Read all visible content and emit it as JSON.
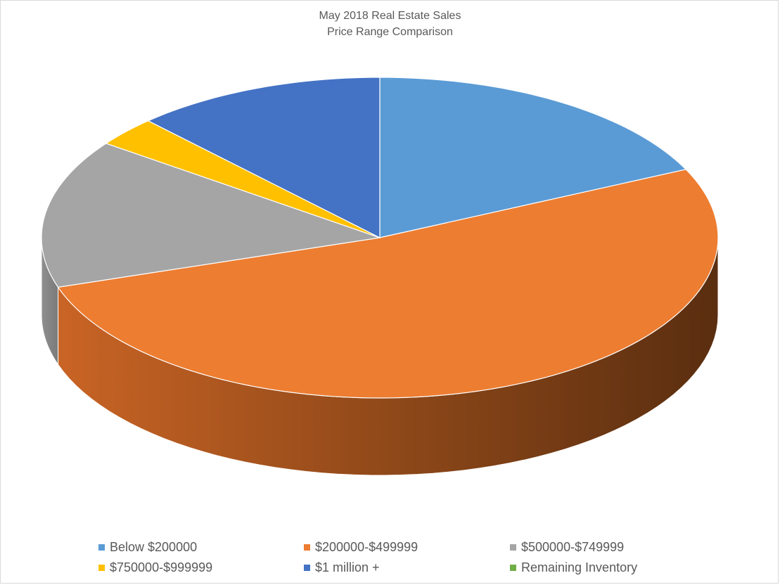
{
  "chart_data": {
    "type": "pie",
    "title": "May 2018 Real Estate Sales",
    "subtitle": "Price Range Comparison",
    "categories": [
      "Below $200000",
      "$200000-$499999",
      "$500000-$749999",
      "$750000-$999999",
      "$1 million +",
      "Remaining Inventory"
    ],
    "values": [
      18,
      52,
      15,
      3,
      12,
      0
    ],
    "colors": [
      "#5B9BD5",
      "#ED7D31",
      "#A5A5A5",
      "#FFC000",
      "#4472C4",
      "#70AD47"
    ],
    "legend_position": "bottom",
    "style": "3d"
  }
}
